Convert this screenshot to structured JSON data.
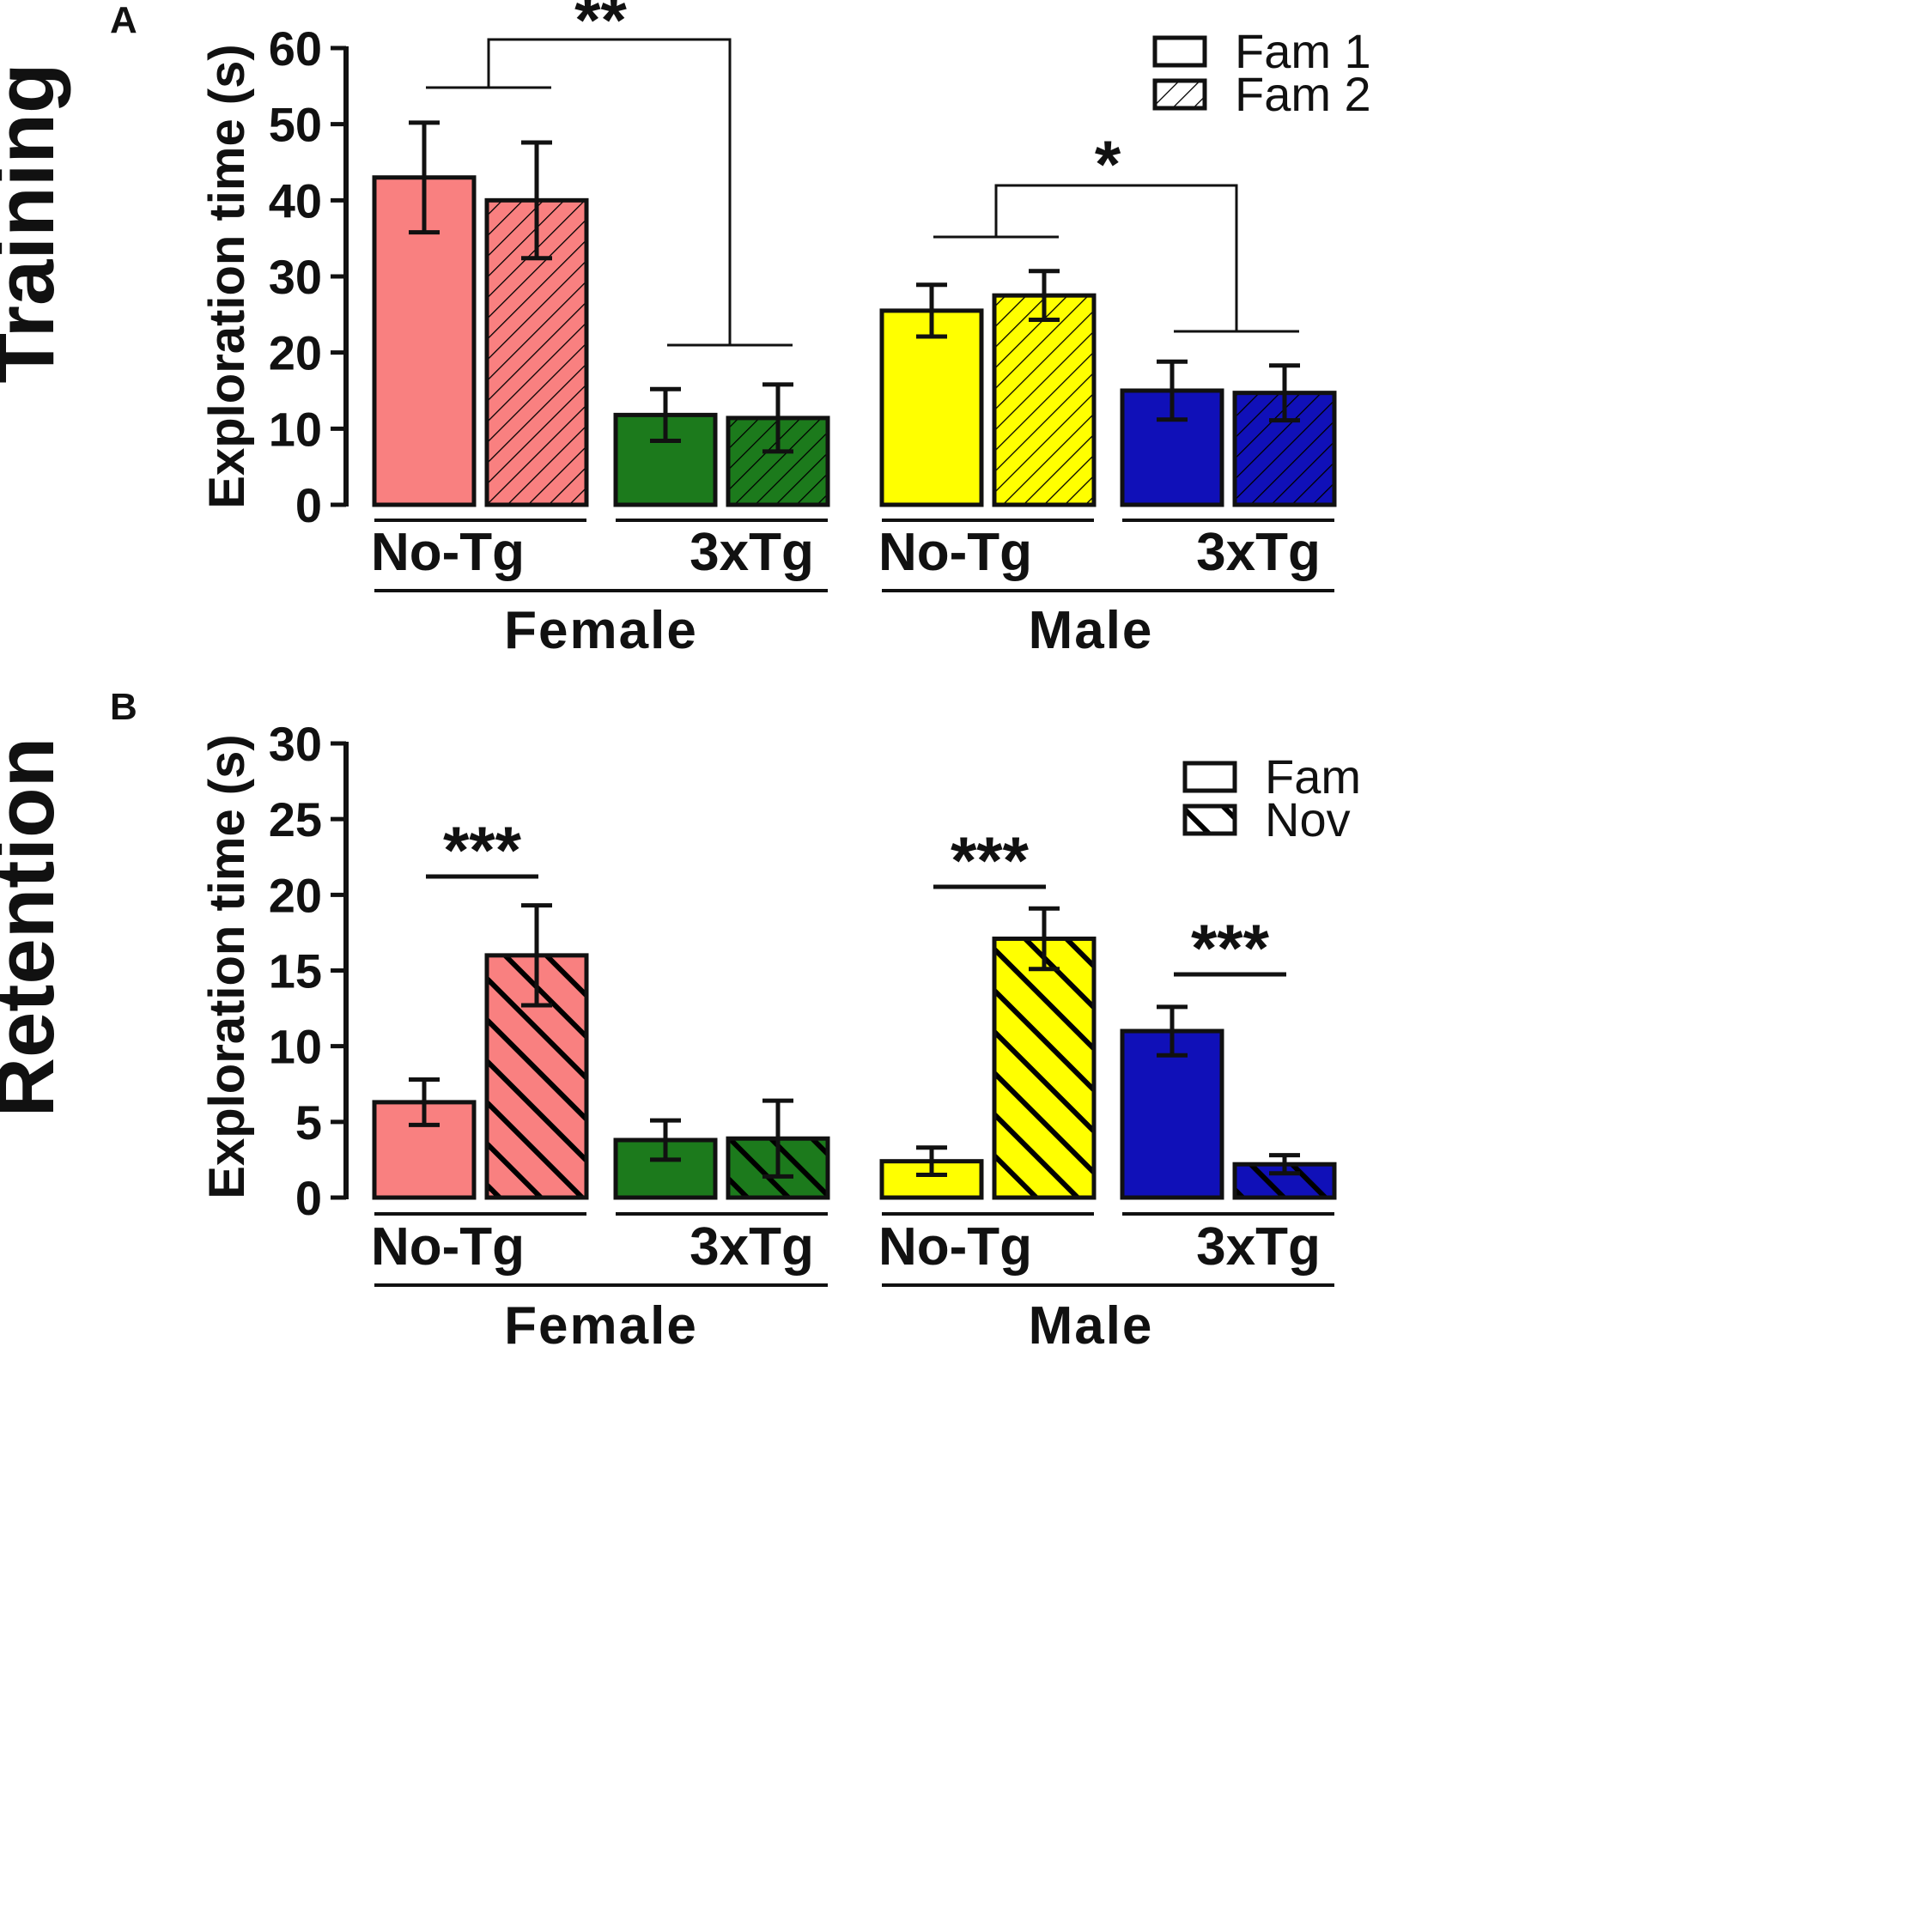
{
  "chart_data": [
    {
      "type": "bar",
      "panel": "A",
      "row_label": "Training",
      "ylabel": "Exploration time (s)",
      "ylim": [
        0,
        60
      ],
      "yticks": [
        0,
        10,
        20,
        30,
        40,
        50,
        60
      ],
      "legend": [
        {
          "label": "Fam 1",
          "pattern": "open"
        },
        {
          "label": "Fam 2",
          "pattern": "hatched"
        }
      ],
      "legend_position": "top-right",
      "sexes": [
        "Female",
        "Male"
      ],
      "groups": [
        {
          "sex": "Female",
          "genotype": "No-Tg",
          "color": "#F98080",
          "values": [
            43.0,
            40.0
          ],
          "errors": [
            7.2,
            7.6
          ]
        },
        {
          "sex": "Female",
          "genotype": "3xTg",
          "color": "#1C7A1C",
          "values": [
            11.8,
            11.4
          ],
          "errors": [
            3.4,
            4.4
          ]
        },
        {
          "sex": "Male",
          "genotype": "No-Tg",
          "color": "#FFFF00",
          "values": [
            25.5,
            27.5
          ],
          "errors": [
            3.4,
            3.2
          ]
        },
        {
          "sex": "Male",
          "genotype": "3xTg",
          "color": "#1010B8",
          "values": [
            15.0,
            14.7
          ],
          "errors": [
            3.8,
            3.6
          ]
        }
      ],
      "annotations": [
        {
          "type": "between-genotypes",
          "sex": "Female",
          "text": "**"
        },
        {
          "type": "between-genotypes",
          "sex": "Male",
          "text": "*"
        }
      ]
    },
    {
      "type": "bar",
      "panel": "B",
      "row_label": "Retention",
      "ylabel": "Exploration time (s)",
      "ylim": [
        0,
        30
      ],
      "yticks": [
        0,
        5,
        10,
        15,
        20,
        25,
        30
      ],
      "legend": [
        {
          "label": "Fam",
          "pattern": "open"
        },
        {
          "label": "Nov",
          "pattern": "hatched"
        }
      ],
      "legend_position": "top-right",
      "sexes": [
        "Female",
        "Male"
      ],
      "groups": [
        {
          "sex": "Female",
          "genotype": "No-Tg",
          "color": "#F98080",
          "values": [
            6.3,
            16.0
          ],
          "errors": [
            1.5,
            3.3
          ]
        },
        {
          "sex": "Female",
          "genotype": "3xTg",
          "color": "#1C7A1C",
          "values": [
            3.8,
            3.9
          ],
          "errors": [
            1.3,
            2.5
          ]
        },
        {
          "sex": "Male",
          "genotype": "No-Tg",
          "color": "#FFFF00",
          "values": [
            2.4,
            17.1
          ],
          "errors": [
            0.9,
            2.0
          ]
        },
        {
          "sex": "Male",
          "genotype": "3xTg",
          "color": "#1010B8",
          "values": [
            11.0,
            2.2
          ],
          "errors": [
            1.6,
            0.6
          ]
        }
      ],
      "annotations": [
        {
          "type": "within-group",
          "group": 0,
          "text": "***"
        },
        {
          "type": "within-group",
          "group": 2,
          "text": "***"
        },
        {
          "type": "within-group",
          "group": 3,
          "text": "***"
        }
      ]
    }
  ]
}
